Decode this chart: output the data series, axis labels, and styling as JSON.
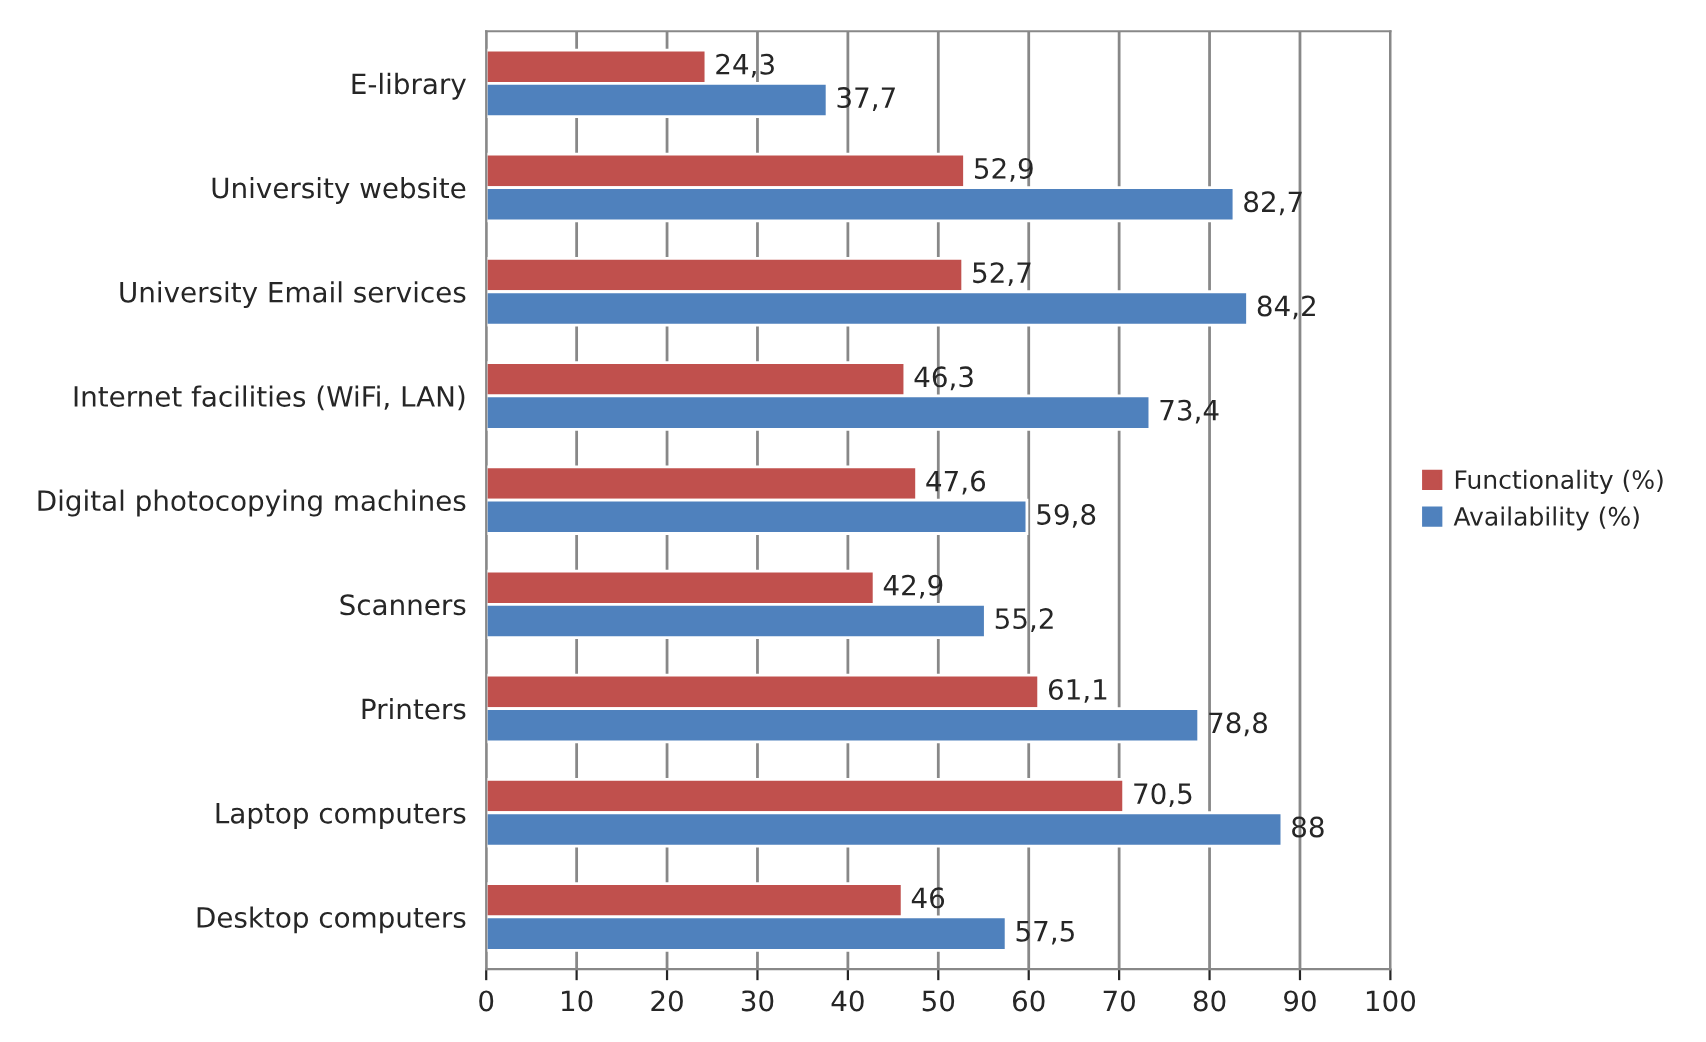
{
  "chart_data": {
    "type": "bar",
    "orientation": "horizontal",
    "categories": [
      "E-library",
      "University website",
      "University Email services",
      "Internet facilities (WiFi, LAN)",
      "Digital photocopying machines",
      "Scanners",
      "Printers",
      "Laptop computers",
      "Desktop computers"
    ],
    "series": [
      {
        "name": "Functionality (%)",
        "color": "#c0504d",
        "values": [
          24.3,
          52.9,
          52.7,
          46.3,
          47.6,
          42.9,
          61.1,
          70.5,
          46
        ],
        "value_labels": [
          "24,3",
          "52,9",
          "52,7",
          "46,3",
          "47,6",
          "42,9",
          "61,1",
          "70,5",
          "46"
        ]
      },
      {
        "name": "Availability (%)",
        "color": "#4f81bd",
        "values": [
          37.7,
          82.7,
          84.2,
          73.4,
          59.8,
          55.2,
          78.8,
          88,
          57.5
        ],
        "value_labels": [
          "37,7",
          "82,7",
          "84,2",
          "73,4",
          "59,8",
          "55,2",
          "78,8",
          "88",
          "57,5"
        ]
      }
    ],
    "xlim": [
      0,
      100
    ],
    "xticks": [
      0,
      10,
      20,
      30,
      40,
      50,
      60,
      70,
      80,
      90,
      100
    ],
    "grid": "x",
    "legend": "right"
  }
}
